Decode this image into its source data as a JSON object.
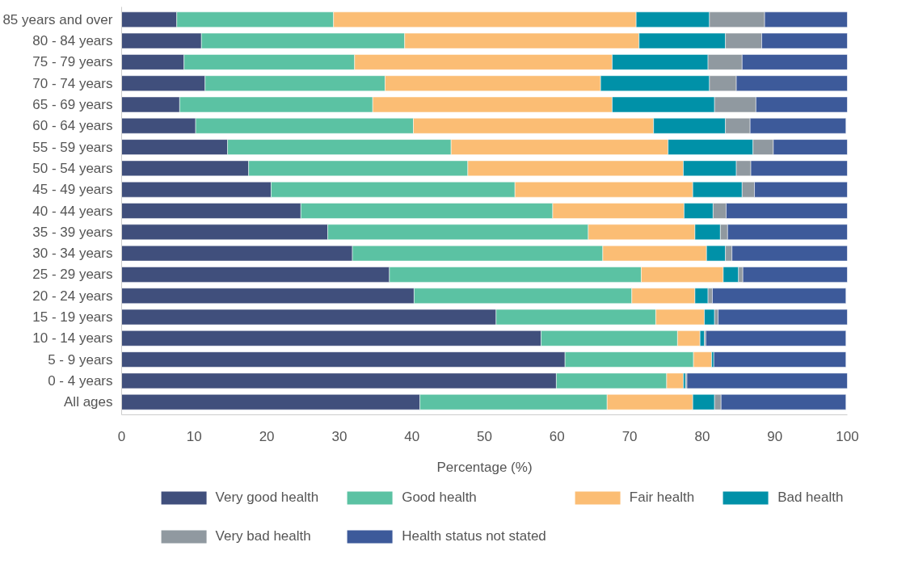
{
  "chart_data": {
    "type": "bar",
    "orientation": "horizontal",
    "stacked": true,
    "xlabel": "Percentage (%)",
    "categories": [
      "85 years and over",
      "80 - 84 years",
      "75 - 79 years",
      "70 - 74 years",
      "65 - 69 years",
      "60 - 64 years",
      "55 - 59 years",
      "50 - 54 years",
      "45 - 49 years",
      "40 - 44 years",
      "35 - 39 years",
      "30 - 34 years",
      "25 - 29 years",
      "20 - 24 years",
      "15 - 19 years",
      "10 - 14 years",
      "5 - 9 years",
      "0 - 4 years",
      "All ages"
    ],
    "xlim": [
      0,
      100
    ],
    "xticks": [
      0,
      10,
      20,
      30,
      40,
      50,
      60,
      70,
      80,
      90,
      100
    ],
    "legend": "bottom",
    "series": [
      {
        "name": "Very good health",
        "color": "#404f7c",
        "values": [
          7.6,
          11.0,
          8.6,
          11.5,
          8.0,
          10.2,
          14.6,
          17.5,
          20.6,
          24.7,
          28.4,
          31.8,
          36.9,
          40.3,
          51.6,
          57.8,
          61.1,
          59.9,
          41.1
        ]
      },
      {
        "name": "Good health",
        "color": "#5bc2a3",
        "values": [
          21.6,
          28.0,
          23.5,
          24.8,
          26.6,
          30.0,
          30.8,
          30.2,
          33.6,
          34.7,
          35.9,
          34.5,
          34.7,
          30.0,
          22.0,
          18.8,
          17.7,
          15.2,
          25.8
        ]
      },
      {
        "name": "Fair health",
        "color": "#fbbd74",
        "values": [
          41.7,
          32.3,
          35.5,
          29.7,
          33.0,
          33.1,
          29.9,
          29.7,
          24.5,
          18.1,
          14.7,
          14.3,
          11.3,
          8.7,
          6.7,
          3.1,
          2.5,
          2.3,
          11.8
        ]
      },
      {
        "name": "Bad health",
        "color": "#0091a8",
        "values": [
          10.1,
          11.9,
          13.2,
          15.0,
          14.1,
          9.9,
          11.7,
          7.3,
          6.8,
          4.0,
          3.5,
          2.6,
          2.1,
          1.8,
          1.4,
          0.6,
          0.3,
          0.3,
          3.0
        ]
      },
      {
        "name": "Very bad health",
        "color": "#9099a0",
        "values": [
          7.6,
          5.0,
          4.7,
          3.7,
          5.7,
          3.4,
          2.8,
          2.0,
          1.7,
          1.8,
          1.0,
          0.9,
          0.6,
          0.6,
          0.5,
          0.2,
          null,
          0.2,
          0.9
        ]
      },
      {
        "name": "Health status not stated",
        "color": "#3d5a9a",
        "values": [
          11.4,
          11.8,
          14.5,
          15.3,
          12.6,
          13.2,
          10.2,
          13.3,
          12.8,
          16.7,
          16.5,
          15.9,
          14.4,
          18.4,
          17.8,
          19.3,
          18.2,
          22.1,
          17.2
        ]
      }
    ]
  }
}
